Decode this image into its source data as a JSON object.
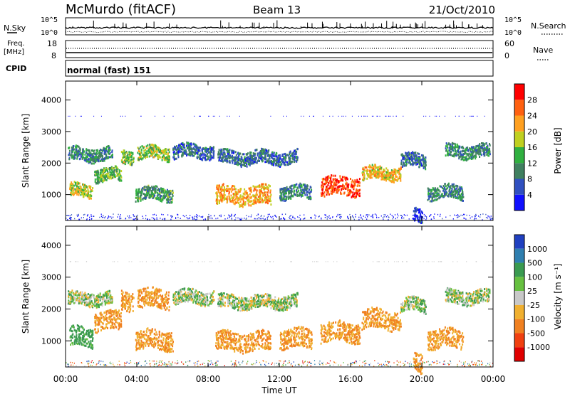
{
  "header": {
    "title": "McMurdo (fitACF)",
    "beam": "Beam 13",
    "date": "21/Oct/2010"
  },
  "strip": {
    "nsky_label": "N.Sky",
    "nsearch_label": "N.Search",
    "freq_label_1": "Freq.",
    "freq_label_2": "[MHz]",
    "nave_label": "Nave",
    "cpid_label": "CPID",
    "cpid_value": "normal (fast) 151",
    "noise_left_ticks": [
      "10^5",
      "10^0"
    ],
    "noise_right_ticks": [
      "10^5",
      "10^0"
    ],
    "freq_left_ticks": [
      "18",
      "8"
    ],
    "freq_right_ticks": [
      "60",
      "0"
    ]
  },
  "chart_data": [
    {
      "type": "heatmap",
      "quantity": "power",
      "ylabel": "Slant Range [km]",
      "ylim": [
        180,
        4600
      ],
      "yticks": [
        "1000",
        "2000",
        "3000",
        "4000"
      ],
      "colorbar_label": "Power [dB]",
      "colorbar_ticks": [
        "4",
        "8",
        "12",
        "16",
        "20",
        "24",
        "28"
      ],
      "colorbar_colors": [
        "#1010ff",
        "#3050c0",
        "#408060",
        "#30b040",
        "#c0d020",
        "#ffa020",
        "#ff6010",
        "#ff0000"
      ],
      "bands": [
        {
          "start_hr": 0.1,
          "end_hr": 2.6,
          "range_km": 2300,
          "value": 10
        },
        {
          "start_hr": 0.2,
          "end_hr": 1.5,
          "range_km": 1150,
          "value": 18
        },
        {
          "start_hr": 1.6,
          "end_hr": 3.1,
          "range_km": 1650,
          "value": 14
        },
        {
          "start_hr": 3.1,
          "end_hr": 3.8,
          "range_km": 2250,
          "value": 16
        },
        {
          "start_hr": 3.9,
          "end_hr": 6.0,
          "range_km": 1050,
          "value": 12
        },
        {
          "start_hr": 4.0,
          "end_hr": 5.8,
          "range_km": 2350,
          "value": 16
        },
        {
          "start_hr": 6.0,
          "end_hr": 8.3,
          "range_km": 2400,
          "value": 8
        },
        {
          "start_hr": 8.4,
          "end_hr": 11.5,
          "range_km": 1000,
          "value": 22
        },
        {
          "start_hr": 8.5,
          "end_hr": 13.0,
          "range_km": 2200,
          "value": 8
        },
        {
          "start_hr": 12.0,
          "end_hr": 13.8,
          "range_km": 1100,
          "value": 10
        },
        {
          "start_hr": 14.3,
          "end_hr": 16.5,
          "range_km": 1300,
          "value": 28
        },
        {
          "start_hr": 16.6,
          "end_hr": 18.8,
          "range_km": 1700,
          "value": 20
        },
        {
          "start_hr": 18.8,
          "end_hr": 20.2,
          "range_km": 2100,
          "value": 8
        },
        {
          "start_hr": 19.5,
          "end_hr": 20.0,
          "range_km": 350,
          "value": 4
        },
        {
          "start_hr": 20.3,
          "end_hr": 22.3,
          "range_km": 1100,
          "value": 10
        },
        {
          "start_hr": 21.3,
          "end_hr": 23.8,
          "range_km": 2400,
          "value": 10
        }
      ]
    },
    {
      "type": "heatmap",
      "quantity": "velocity",
      "ylabel": "Slant Range [km]",
      "ylim": [
        180,
        4600
      ],
      "yticks": [
        "1000",
        "2000",
        "3000",
        "4000"
      ],
      "colorbar_label": "Velocity [m s⁻¹]",
      "colorbar_ticks": [
        "1000",
        "500",
        "100",
        "25",
        "-25",
        "-100",
        "-500",
        "-1000"
      ],
      "colorbar_colors": [
        "#2040c0",
        "#2f7fb0",
        "#3a9a50",
        "#66c040",
        "#c8c8c8",
        "#f0b030",
        "#f08020",
        "#f04010",
        "#e00000"
      ],
      "bands": [
        {
          "start_hr": 0.1,
          "end_hr": 2.6,
          "range_km": 2350,
          "value": 0
        },
        {
          "start_hr": 0.2,
          "end_hr": 1.5,
          "range_km": 1150,
          "value": 150
        },
        {
          "start_hr": 1.6,
          "end_hr": 3.1,
          "range_km": 1650,
          "value": -300
        },
        {
          "start_hr": 3.1,
          "end_hr": 3.8,
          "range_km": 2300,
          "value": -300
        },
        {
          "start_hr": 3.9,
          "end_hr": 6.0,
          "range_km": 1050,
          "value": -300
        },
        {
          "start_hr": 4.0,
          "end_hr": 5.8,
          "range_km": 2350,
          "value": -300
        },
        {
          "start_hr": 6.0,
          "end_hr": 8.3,
          "range_km": 2400,
          "value": 0
        },
        {
          "start_hr": 8.4,
          "end_hr": 11.5,
          "range_km": 1000,
          "value": -300
        },
        {
          "start_hr": 8.5,
          "end_hr": 13.0,
          "range_km": 2250,
          "value": 0
        },
        {
          "start_hr": 12.0,
          "end_hr": 13.8,
          "range_km": 1100,
          "value": -300
        },
        {
          "start_hr": 14.3,
          "end_hr": 16.5,
          "range_km": 1300,
          "value": -300
        },
        {
          "start_hr": 16.6,
          "end_hr": 18.8,
          "range_km": 1700,
          "value": -300
        },
        {
          "start_hr": 18.8,
          "end_hr": 20.2,
          "range_km": 2150,
          "value": 0
        },
        {
          "start_hr": 19.5,
          "end_hr": 20.0,
          "range_km": 300,
          "value": -300
        },
        {
          "start_hr": 20.3,
          "end_hr": 22.3,
          "range_km": 1100,
          "value": -300
        },
        {
          "start_hr": 21.3,
          "end_hr": 23.8,
          "range_km": 2400,
          "value": 0
        }
      ]
    }
  ],
  "xaxis": {
    "label": "Time UT",
    "ticks": [
      "00:00",
      "04:00",
      "08:00",
      "12:00",
      "16:00",
      "20:00",
      "00:00"
    ],
    "tick_hours": [
      0,
      4,
      8,
      12,
      16,
      20,
      24
    ]
  }
}
